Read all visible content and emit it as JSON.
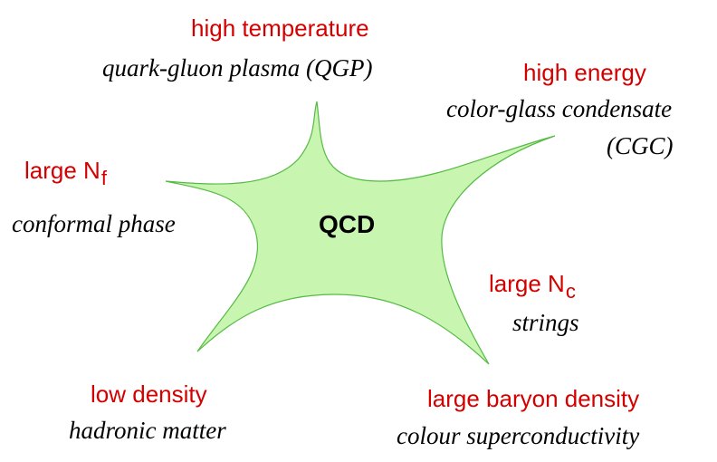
{
  "center": {
    "label": "QCD"
  },
  "colors": {
    "star_fill": "#c8f5b0",
    "star_stroke": "#55bb44",
    "regime_text": "#d40000",
    "phase_text": "#000000"
  },
  "regimes": {
    "high_temperature": {
      "condition": "high temperature",
      "phase": "quark-gluon plasma (QGP)"
    },
    "high_energy": {
      "condition": "high energy",
      "phase_line1": "color-glass condensate",
      "phase_line2": "(CGC)"
    },
    "large_nf": {
      "condition_base": "large N",
      "condition_sub": "f",
      "phase": "conformal phase"
    },
    "large_nc": {
      "condition_base": "large N",
      "condition_sub": "c",
      "phase": "strings"
    },
    "low_density": {
      "condition": "low density",
      "phase": "hadronic matter"
    },
    "large_baryon_density": {
      "condition": "large baryon density",
      "phase": "colour superconductivity"
    }
  }
}
